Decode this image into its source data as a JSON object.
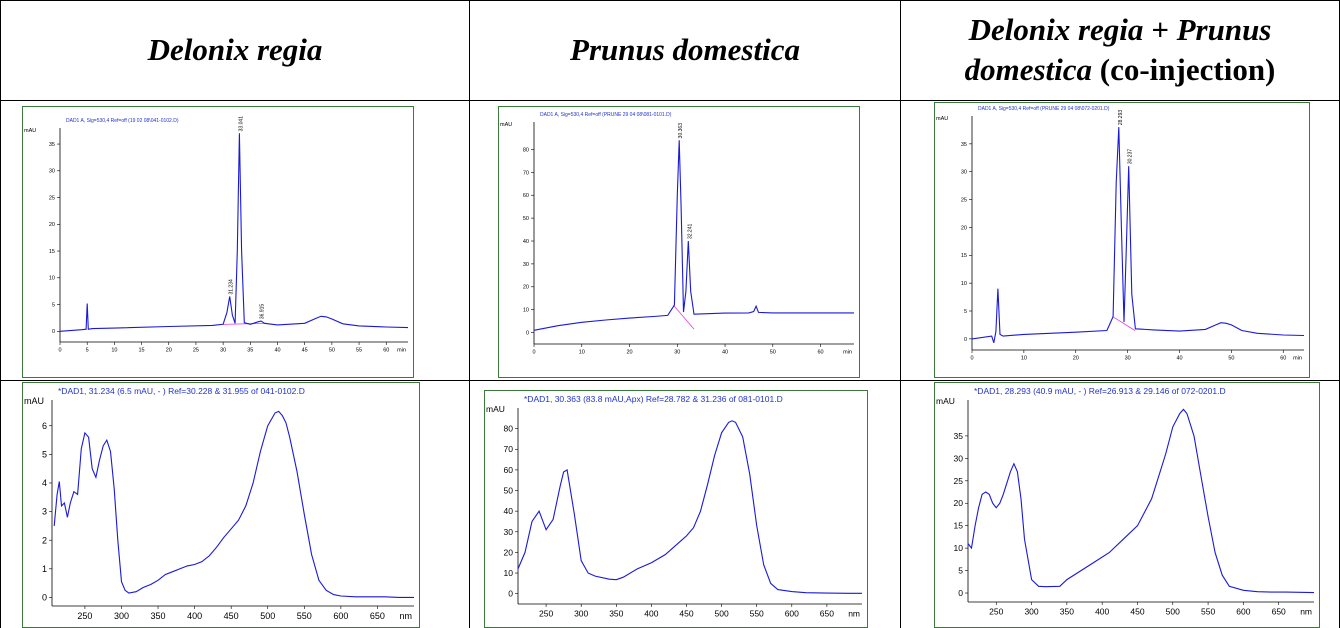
{
  "headers": {
    "col1": {
      "species": "Delonix regia"
    },
    "col2": {
      "species": "Prunus domestica"
    },
    "col3": {
      "species_a": "Delonix regia + Prunus",
      "species_b": "domestica",
      "suffix": " (co-injection)"
    }
  },
  "chart_data": [
    {
      "id": "hplc-delonix",
      "type": "line",
      "title": "DAD1 A, Sig=530,4 Ref=off (19 02 08\\041-0102.D)",
      "ylabel": "mAU",
      "xunit": "min",
      "xlim": [
        0,
        64
      ],
      "ylim": [
        -2,
        38
      ],
      "xticks": [
        "0",
        "5",
        "10",
        "15",
        "20",
        "25",
        "30",
        "35",
        "40",
        "45",
        "50",
        "55",
        "60"
      ],
      "yticks": [
        "0",
        "5",
        "10",
        "15",
        "20",
        "25",
        "30",
        "35"
      ],
      "peaks": [
        {
          "x": 31.2,
          "label": "31.234"
        },
        {
          "x": 33.0,
          "label": "33.041"
        },
        {
          "x": 36.9,
          "label": "36.915"
        }
      ],
      "x": [
        0,
        4,
        4.8,
        5.0,
        5.2,
        6,
        10,
        20,
        28,
        30,
        30.7,
        31.2,
        31.7,
        32.2,
        32.6,
        33.0,
        33.4,
        33.9,
        35,
        36.5,
        37,
        37.6,
        40,
        45,
        47,
        48,
        49,
        50,
        52,
        55,
        60,
        64
      ],
      "y": [
        0,
        0.3,
        0.4,
        5.2,
        0.4,
        0.5,
        0.6,
        0.9,
        1.1,
        1.3,
        3.5,
        6.5,
        3.0,
        1.5,
        15,
        37,
        15,
        1.6,
        1.3,
        1.8,
        1.9,
        1.5,
        1.2,
        1.5,
        2.4,
        2.8,
        2.7,
        2.3,
        1.4,
        1.0,
        0.8,
        0.7
      ]
    },
    {
      "id": "hplc-prunus",
      "type": "line",
      "title": "DAD1 A, Sig=530,4 Ref=off (PRUNE 29 04 08\\081-0101.D)",
      "ylabel": "mAU",
      "xunit": "min",
      "xlim": [
        0,
        67
      ],
      "ylim": [
        -5,
        92
      ],
      "xticks": [
        "0",
        "10",
        "20",
        "30",
        "40",
        "50",
        "60"
      ],
      "yticks": [
        "0",
        "10",
        "20",
        "30",
        "40",
        "50",
        "60",
        "70",
        "80"
      ],
      "peaks": [
        {
          "x": 30.4,
          "label": "30.363"
        },
        {
          "x": 32.3,
          "label": "32.241"
        }
      ],
      "x": [
        0,
        5,
        10,
        15,
        20,
        25,
        28,
        29.4,
        30.0,
        30.4,
        30.8,
        31.3,
        31.8,
        32.3,
        32.8,
        33.5,
        40,
        45,
        46,
        46.5,
        47,
        50,
        55,
        60,
        67
      ],
      "y": [
        1,
        3,
        4.5,
        5.5,
        6.3,
        7,
        7.5,
        12,
        60,
        84,
        55,
        9,
        18,
        40,
        18,
        8,
        8.5,
        8.6,
        9.2,
        11.5,
        8.8,
        8.6,
        8.6,
        8.6,
        8.6
      ]
    },
    {
      "id": "hplc-coinj",
      "type": "line",
      "title": "DAD1 A, Sig=530,4 Ref=off (PRUNE 29 04 08\\072-0201.D)",
      "ylabel": "mAU",
      "xunit": "min",
      "xlim": [
        0,
        64
      ],
      "ylim": [
        -2,
        40
      ],
      "xticks": [
        "0",
        "10",
        "20",
        "30",
        "40",
        "50",
        "60"
      ],
      "yticks": [
        "0",
        "5",
        "10",
        "15",
        "20",
        "25",
        "30",
        "35"
      ],
      "peaks": [
        {
          "x": 28.3,
          "label": "28.293"
        },
        {
          "x": 30.2,
          "label": "30.237"
        }
      ],
      "x": [
        0,
        3.8,
        4.2,
        4.6,
        5.0,
        5.4,
        6,
        10,
        20,
        26,
        27.2,
        27.8,
        28.3,
        28.8,
        29.3,
        29.7,
        30.2,
        30.8,
        31.5,
        35,
        40,
        45,
        47,
        48,
        49,
        50,
        52,
        55,
        60,
        64
      ],
      "y": [
        0,
        0.5,
        -0.7,
        1.3,
        9.0,
        0.8,
        0.5,
        0.8,
        1.2,
        1.5,
        4,
        28,
        38,
        20,
        3,
        15,
        31,
        8,
        1.8,
        1.6,
        1.4,
        1.7,
        2.5,
        2.9,
        2.8,
        2.5,
        1.5,
        1.0,
        0.7,
        0.6
      ]
    },
    {
      "id": "uv-delonix",
      "type": "line",
      "title": "*DAD1, 31.234 (6.5 mAU, - ) Ref=30.228 & 31.955 of 041-0102.D",
      "ylabel": "mAU",
      "xunit": "nm",
      "xlim": [
        205,
        700
      ],
      "ylim": [
        -0.3,
        6.9
      ],
      "xticks": [
        "250",
        "300",
        "350",
        "400",
        "450",
        "500",
        "550",
        "600",
        "650"
      ],
      "yticks": [
        "0",
        "1",
        "2",
        "3",
        "4",
        "5",
        "6"
      ],
      "x": [
        208,
        212,
        215,
        218,
        222,
        226,
        230,
        235,
        240,
        245,
        250,
        255,
        260,
        265,
        270,
        275,
        280,
        285,
        290,
        295,
        300,
        305,
        310,
        320,
        330,
        340,
        350,
        360,
        370,
        380,
        390,
        400,
        410,
        420,
        430,
        440,
        450,
        460,
        470,
        480,
        490,
        500,
        510,
        515,
        520,
        525,
        530,
        540,
        550,
        560,
        570,
        580,
        590,
        600,
        620,
        640,
        660,
        680,
        700
      ],
      "y": [
        2.5,
        3.6,
        4.05,
        3.2,
        3.3,
        2.8,
        3.3,
        3.7,
        3.6,
        5.2,
        5.75,
        5.6,
        4.5,
        4.2,
        4.8,
        5.3,
        5.5,
        5.1,
        3.8,
        2.0,
        0.55,
        0.25,
        0.15,
        0.2,
        0.35,
        0.45,
        0.6,
        0.8,
        0.9,
        1.0,
        1.1,
        1.15,
        1.25,
        1.45,
        1.75,
        2.1,
        2.4,
        2.7,
        3.2,
        4.0,
        5.1,
        6.0,
        6.45,
        6.5,
        6.35,
        6.1,
        5.6,
        4.4,
        2.9,
        1.5,
        0.6,
        0.25,
        0.1,
        0.05,
        0.02,
        0.02,
        0.02,
        0.0,
        0.0
      ]
    },
    {
      "id": "uv-prunus",
      "type": "line",
      "title": "*DAD1, 30.363 (83.8 mAU,Apx) Ref=28.782 & 31.236 of 081-0101.D",
      "ylabel": "mAU",
      "xunit": "nm",
      "xlim": [
        210,
        700
      ],
      "ylim": [
        -5,
        90
      ],
      "xticks": [
        "250",
        "300",
        "350",
        "400",
        "450",
        "500",
        "550",
        "600",
        "650"
      ],
      "yticks": [
        "0",
        "10",
        "20",
        "30",
        "40",
        "50",
        "60",
        "70",
        "80"
      ],
      "x": [
        210,
        220,
        230,
        240,
        250,
        260,
        270,
        275,
        280,
        290,
        300,
        310,
        320,
        340,
        350,
        360,
        380,
        400,
        420,
        440,
        450,
        460,
        470,
        480,
        490,
        500,
        510,
        515,
        520,
        530,
        540,
        550,
        560,
        570,
        580,
        600,
        620,
        650,
        680,
        700
      ],
      "y": [
        12,
        20,
        35,
        40,
        31,
        36,
        52,
        59,
        60,
        39,
        16,
        10,
        8.5,
        7,
        6.8,
        8,
        12,
        15,
        19,
        25,
        28,
        32,
        40,
        53,
        67,
        78,
        83,
        83.8,
        83,
        76,
        58,
        33,
        14,
        5,
        2,
        1,
        0.5,
        0.3,
        0.2,
        0.2
      ]
    },
    {
      "id": "uv-coinj",
      "type": "line",
      "title": "*DAD1, 28.293 (40.9 mAU, - ) Ref=26.913 & 29.146 of 072-0201.D",
      "ylabel": "mAU",
      "xunit": "nm",
      "xlim": [
        210,
        700
      ],
      "ylim": [
        -2,
        43
      ],
      "xticks": [
        "250",
        "300",
        "350",
        "400",
        "450",
        "500",
        "550",
        "600",
        "650"
      ],
      "yticks": [
        "0",
        "5",
        "10",
        "15",
        "20",
        "25",
        "30",
        "35"
      ],
      "x": [
        210,
        215,
        220,
        225,
        230,
        235,
        240,
        245,
        250,
        255,
        260,
        270,
        275,
        280,
        285,
        290,
        300,
        310,
        320,
        340,
        350,
        370,
        390,
        410,
        430,
        450,
        470,
        480,
        490,
        500,
        510,
        515,
        520,
        530,
        540,
        550,
        560,
        570,
        580,
        600,
        620,
        640,
        660,
        700
      ],
      "y": [
        11,
        10,
        15,
        19,
        22,
        22.5,
        22,
        20,
        19,
        20,
        22,
        27,
        28.8,
        27,
        21,
        12,
        3,
        1.5,
        1.4,
        1.5,
        3,
        5,
        7,
        9,
        12,
        15,
        21,
        26,
        31,
        37,
        40,
        40.9,
        40,
        35,
        26,
        17,
        9,
        4,
        1.5,
        0.6,
        0.3,
        0.2,
        0.2,
        0.1
      ]
    }
  ]
}
